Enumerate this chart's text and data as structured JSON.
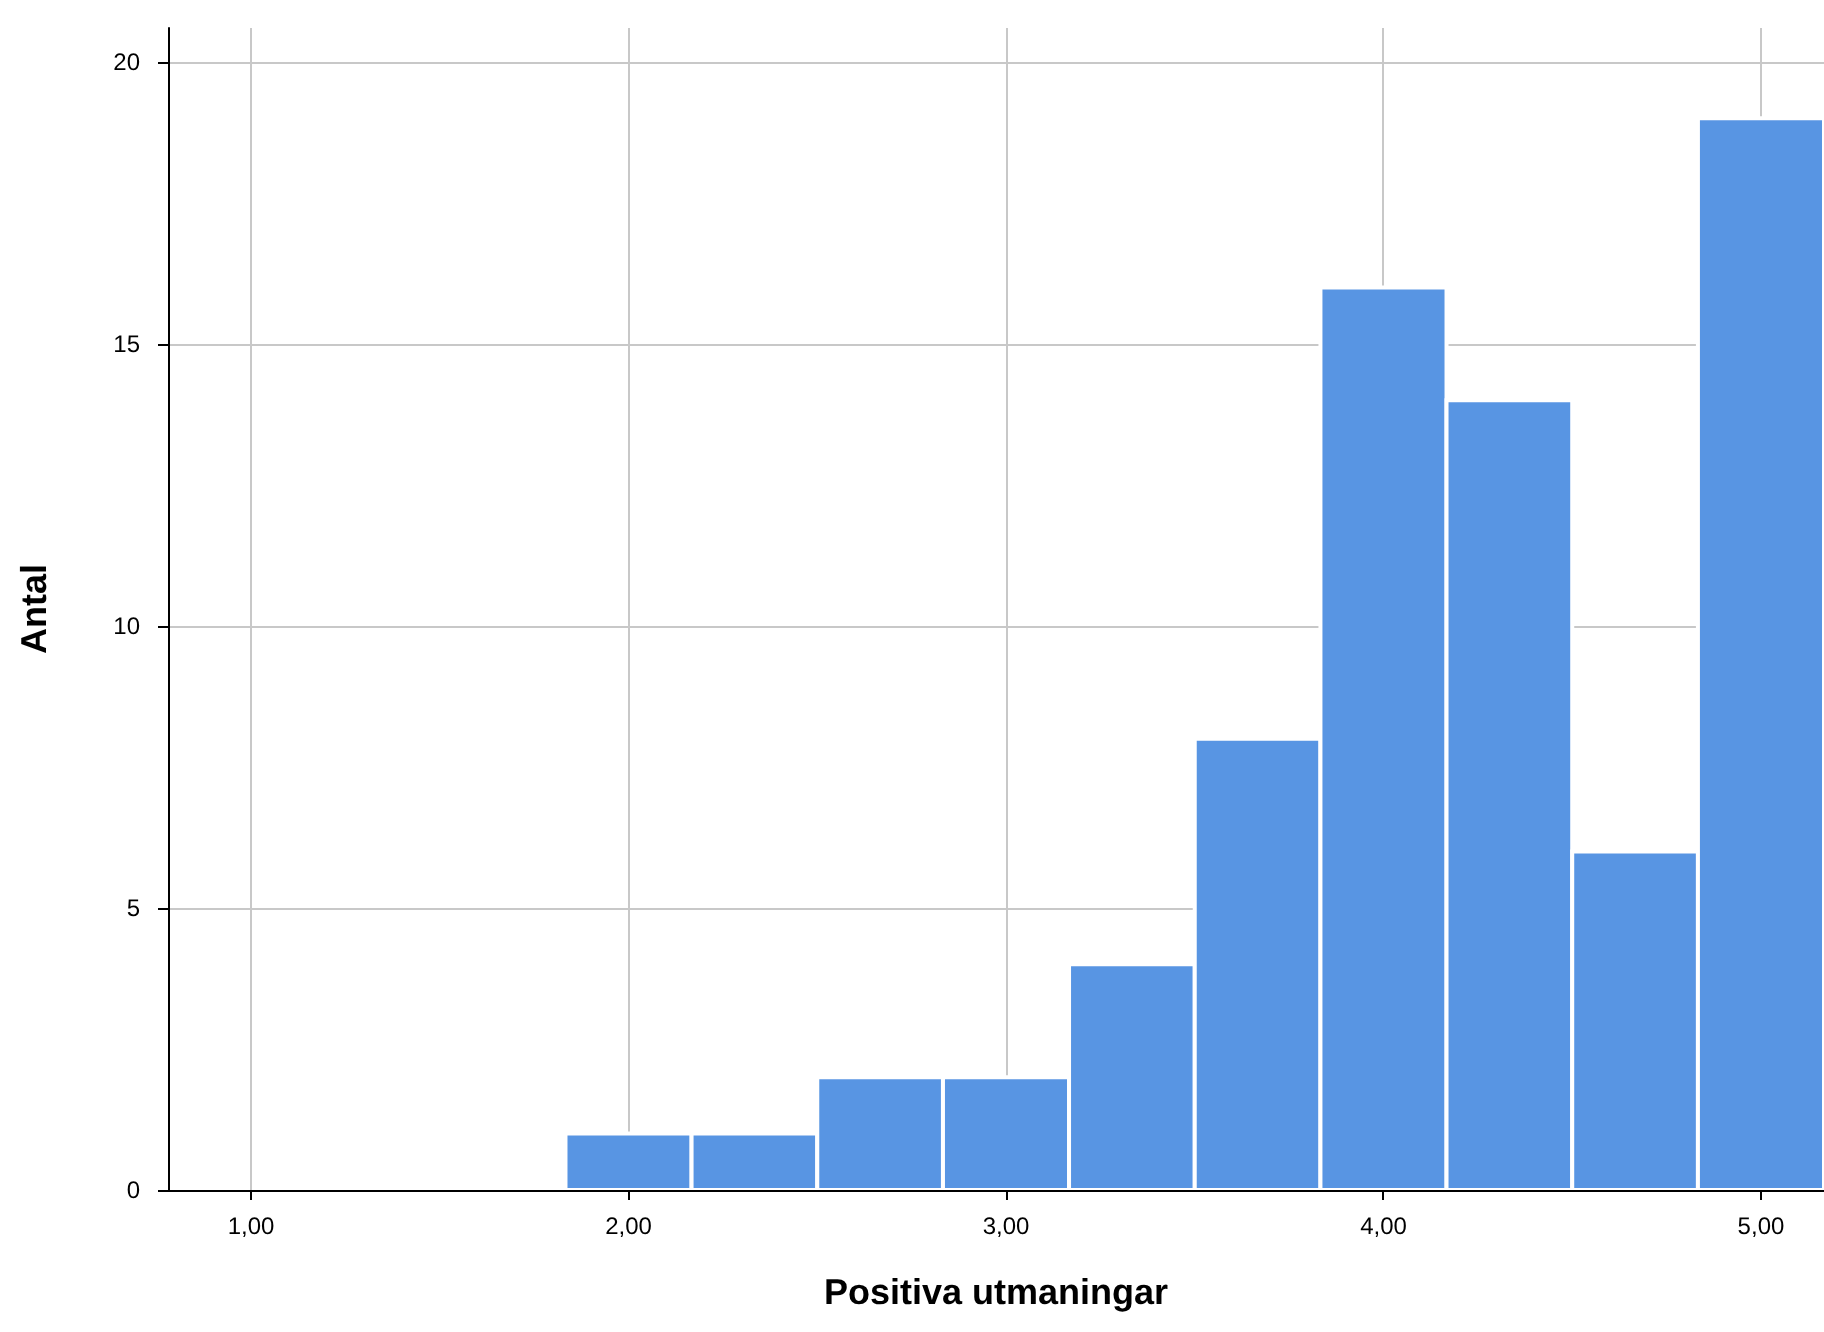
{
  "chart_data": {
    "type": "histogram",
    "xlabel": "Positiva utmaningar",
    "ylabel": "Antal",
    "bins": [
      1.833,
      2.167,
      2.5,
      2.833,
      3.167,
      3.5,
      3.833,
      4.167,
      4.5,
      4.833,
      5.167
    ],
    "values": [
      1,
      1,
      2,
      2,
      4,
      8,
      16,
      14,
      6,
      19
    ],
    "color": "#5895e3",
    "xlim": [
      0.78,
      5.167
    ],
    "xticks": [
      {
        "value": 1,
        "label": "1,00"
      },
      {
        "value": 2,
        "label": "2,00"
      },
      {
        "value": 3,
        "label": "3,00"
      },
      {
        "value": 4,
        "label": "4,00"
      },
      {
        "value": 5,
        "label": "5,00"
      }
    ],
    "ylim": [
      0,
      20.6
    ],
    "yticks": [
      0,
      5,
      10,
      15,
      20
    ],
    "grid": true
  }
}
